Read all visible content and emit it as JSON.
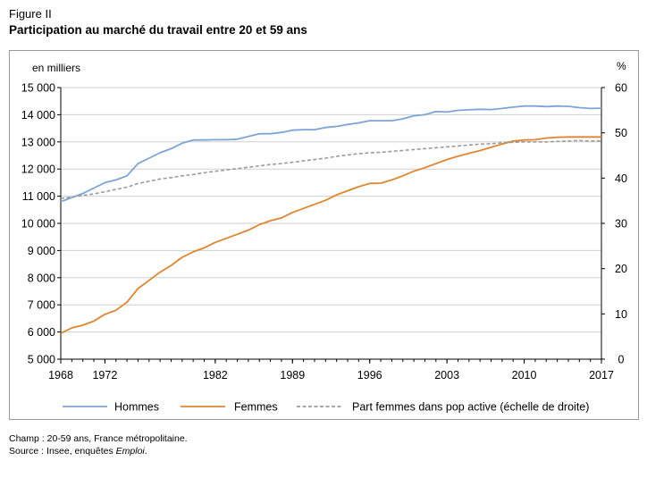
{
  "figure_label": "Figure II",
  "title": "Participation au marché du travail entre 20 et 59 ans",
  "notes": {
    "champ": "Champ : 20-59 ans, France métropolitaine.",
    "source_prefix": "Source : Insee, enquêtes ",
    "source_em": "Emploi",
    "source_suffix": "."
  },
  "colors": {
    "Hommes": "#7ea4d6",
    "Femmes": "#e0852e",
    "Part": "#9b9b9b",
    "axis": "#000000",
    "frame": "#9a9a9a"
  },
  "chart_data": {
    "type": "line",
    "title": "Participation au marché du travail entre 20 et 59 ans",
    "left_axis": {
      "label": "en milliers",
      "range": [
        5000,
        15000
      ],
      "ticks": [
        "5 000",
        "6 000",
        "7 000",
        "8 000",
        "9 000",
        "10 000",
        "11 000",
        "12 000",
        "13 000",
        "14 000",
        "15 000"
      ]
    },
    "right_axis": {
      "label": "%",
      "range": [
        0,
        60
      ],
      "ticks": [
        "0",
        "10",
        "20",
        "30",
        "40",
        "50",
        "60"
      ]
    },
    "x_range": [
      1968,
      2017
    ],
    "x_tick_labels": [
      "1968",
      "1972",
      "1982",
      "1989",
      "1996",
      "2003",
      "2010",
      "2017"
    ],
    "x_tick_positions": [
      1968,
      1972,
      1982,
      1989,
      1996,
      2003,
      2010,
      2017
    ],
    "grid": "horizontal",
    "legend_position": "bottom",
    "x": [
      1968,
      1969,
      1970,
      1971,
      1972,
      1973,
      1974,
      1975,
      1976,
      1977,
      1978,
      1979,
      1980,
      1981,
      1982,
      1983,
      1984,
      1985,
      1986,
      1987,
      1988,
      1989,
      1990,
      1991,
      1992,
      1993,
      1994,
      1995,
      1996,
      1997,
      1998,
      1999,
      2000,
      2001,
      2002,
      2003,
      2004,
      2005,
      2006,
      2007,
      2008,
      2009,
      2010,
      2011,
      2012,
      2013,
      2014,
      2015,
      2016,
      2017
    ],
    "series": [
      {
        "name": "Hommes",
        "axis": "left",
        "style": "solid",
        "values": [
          10800,
          10950,
          11100,
          11300,
          11500,
          11600,
          11750,
          12200,
          12400,
          12600,
          12750,
          12950,
          13070,
          13070,
          13080,
          13080,
          13100,
          13200,
          13300,
          13300,
          13350,
          13430,
          13450,
          13450,
          13530,
          13570,
          13640,
          13700,
          13780,
          13780,
          13780,
          13850,
          13960,
          14000,
          14120,
          14100,
          14160,
          14180,
          14200,
          14190,
          14230,
          14280,
          14320,
          14320,
          14300,
          14320,
          14310,
          14260,
          14230,
          14240
        ]
      },
      {
        "name": "Femmes",
        "axis": "left",
        "style": "solid",
        "values": [
          5950,
          6150,
          6250,
          6400,
          6650,
          6800,
          7100,
          7600,
          7900,
          8200,
          8450,
          8750,
          8950,
          9100,
          9300,
          9450,
          9600,
          9750,
          9950,
          10100,
          10200,
          10400,
          10550,
          10700,
          10850,
          11050,
          11200,
          11350,
          11470,
          11480,
          11600,
          11750,
          11920,
          12050,
          12200,
          12350,
          12470,
          12580,
          12680,
          12800,
          12920,
          13030,
          13070,
          13080,
          13140,
          13170,
          13180,
          13180,
          13180,
          13180
        ]
      },
      {
        "name": "Part femmes dans pop active (échelle de droite)",
        "axis": "right",
        "style": "dashed",
        "values": [
          35.5,
          35.8,
          36.2,
          36.5,
          37.0,
          37.5,
          38.0,
          38.8,
          39.3,
          39.8,
          40.1,
          40.5,
          40.8,
          41.2,
          41.5,
          41.8,
          42.1,
          42.4,
          42.7,
          43.0,
          43.2,
          43.5,
          43.8,
          44.1,
          44.4,
          44.8,
          45.1,
          45.4,
          45.6,
          45.7,
          45.9,
          46.1,
          46.3,
          46.5,
          46.7,
          46.9,
          47.1,
          47.3,
          47.5,
          47.6,
          47.8,
          47.9,
          48.0,
          48.0,
          48.0,
          48.1,
          48.2,
          48.3,
          48.2,
          48.2
        ]
      }
    ]
  }
}
